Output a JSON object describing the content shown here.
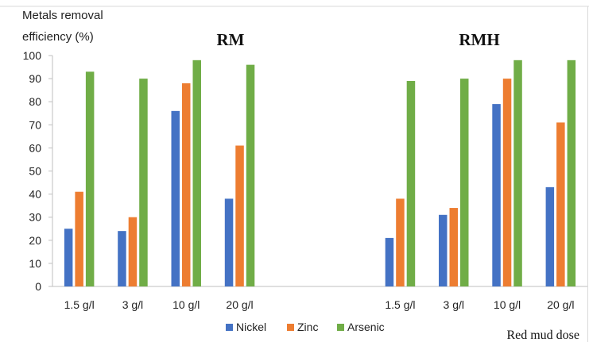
{
  "chart_data": {
    "type": "bar",
    "ylabel": "Metals removal efficiency (%)",
    "ylabel_lines": [
      "Metals removal",
      "efficiency (%)"
    ],
    "xlabel": "Red mud dose",
    "ylim": [
      0,
      100
    ],
    "yticks": [
      0,
      10,
      20,
      30,
      40,
      50,
      60,
      70,
      80,
      90,
      100
    ],
    "grid": false,
    "legend_position": "bottom",
    "panel_titles": [
      "RM",
      "RMH"
    ],
    "categories": [
      "1.5 g/l",
      "3 g/l",
      "10 g/l",
      "20 g/l",
      "",
      "",
      "1.5 g/l",
      "3 g/l",
      "10 g/l",
      "20 g/l"
    ],
    "series": [
      {
        "name": "Nickel",
        "color": "#4472c4",
        "values": [
          25,
          24,
          76,
          38,
          null,
          null,
          21,
          31,
          79,
          43
        ]
      },
      {
        "name": "Zinc",
        "color": "#ed7d31",
        "values": [
          41,
          30,
          88,
          61,
          null,
          null,
          38,
          34,
          90,
          71
        ]
      },
      {
        "name": "Arsenic",
        "color": "#70ad47",
        "values": [
          93,
          90,
          98,
          96,
          null,
          null,
          89,
          90,
          98,
          98
        ]
      }
    ]
  }
}
